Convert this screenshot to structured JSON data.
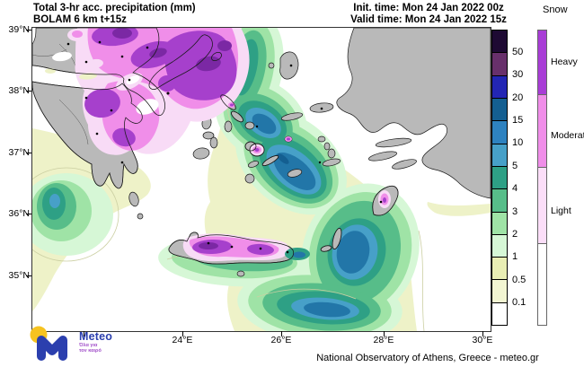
{
  "header": {
    "title_line1": "Total 3-hr acc. precipitation (mm)",
    "title_line2": "BOLAM 6 km t+15z",
    "init_time": "Init. time: Mon 24 Jan 2022 00z",
    "valid_time": "Valid time: Mon 24 Jan 2022 15z"
  },
  "legend": {
    "precip_mm": {
      "values": [
        "50",
        "30",
        "20",
        "15",
        "10",
        "5",
        "4",
        "3",
        "2",
        "1",
        "0.5",
        "0.1"
      ],
      "colors_top_to_bottom": [
        "#1e0a33",
        "#68306b",
        "#2326b4",
        "#145f91",
        "#2e82c0",
        "#47a0c8",
        "#2ea085",
        "#57bd89",
        "#9fe3a6",
        "#d6f7d6",
        "#e9eeb4",
        "#f2f5d2",
        "#ffffff"
      ]
    },
    "snow": {
      "title": "Snow",
      "categories": [
        "Heavy",
        "Moderate",
        "Light"
      ],
      "colors_top_to_bottom": [
        "#a83dd6",
        "#f08ee9",
        "#fbdef8",
        "#ffffff"
      ]
    }
  },
  "map": {
    "lat_labels": [
      "39°N",
      "38°N",
      "37°N",
      "36°N",
      "35°N"
    ],
    "lon_labels": [
      "24°E",
      "26°E",
      "28°E",
      "30°E"
    ],
    "land_color": "#b9b9b9",
    "sea_color": "#ffffff"
  },
  "footer": {
    "attribution": "National Observatory of Athens, Greece - meteo.gr",
    "logo_name": "Meteo",
    "logo_tagline_line1": "Όλα για",
    "logo_tagline_line2": "τον καιρό",
    "logo_blue": "#2b3fae",
    "logo_yellow": "#f6c321",
    "logo_tag_color": "#a14fc9"
  }
}
